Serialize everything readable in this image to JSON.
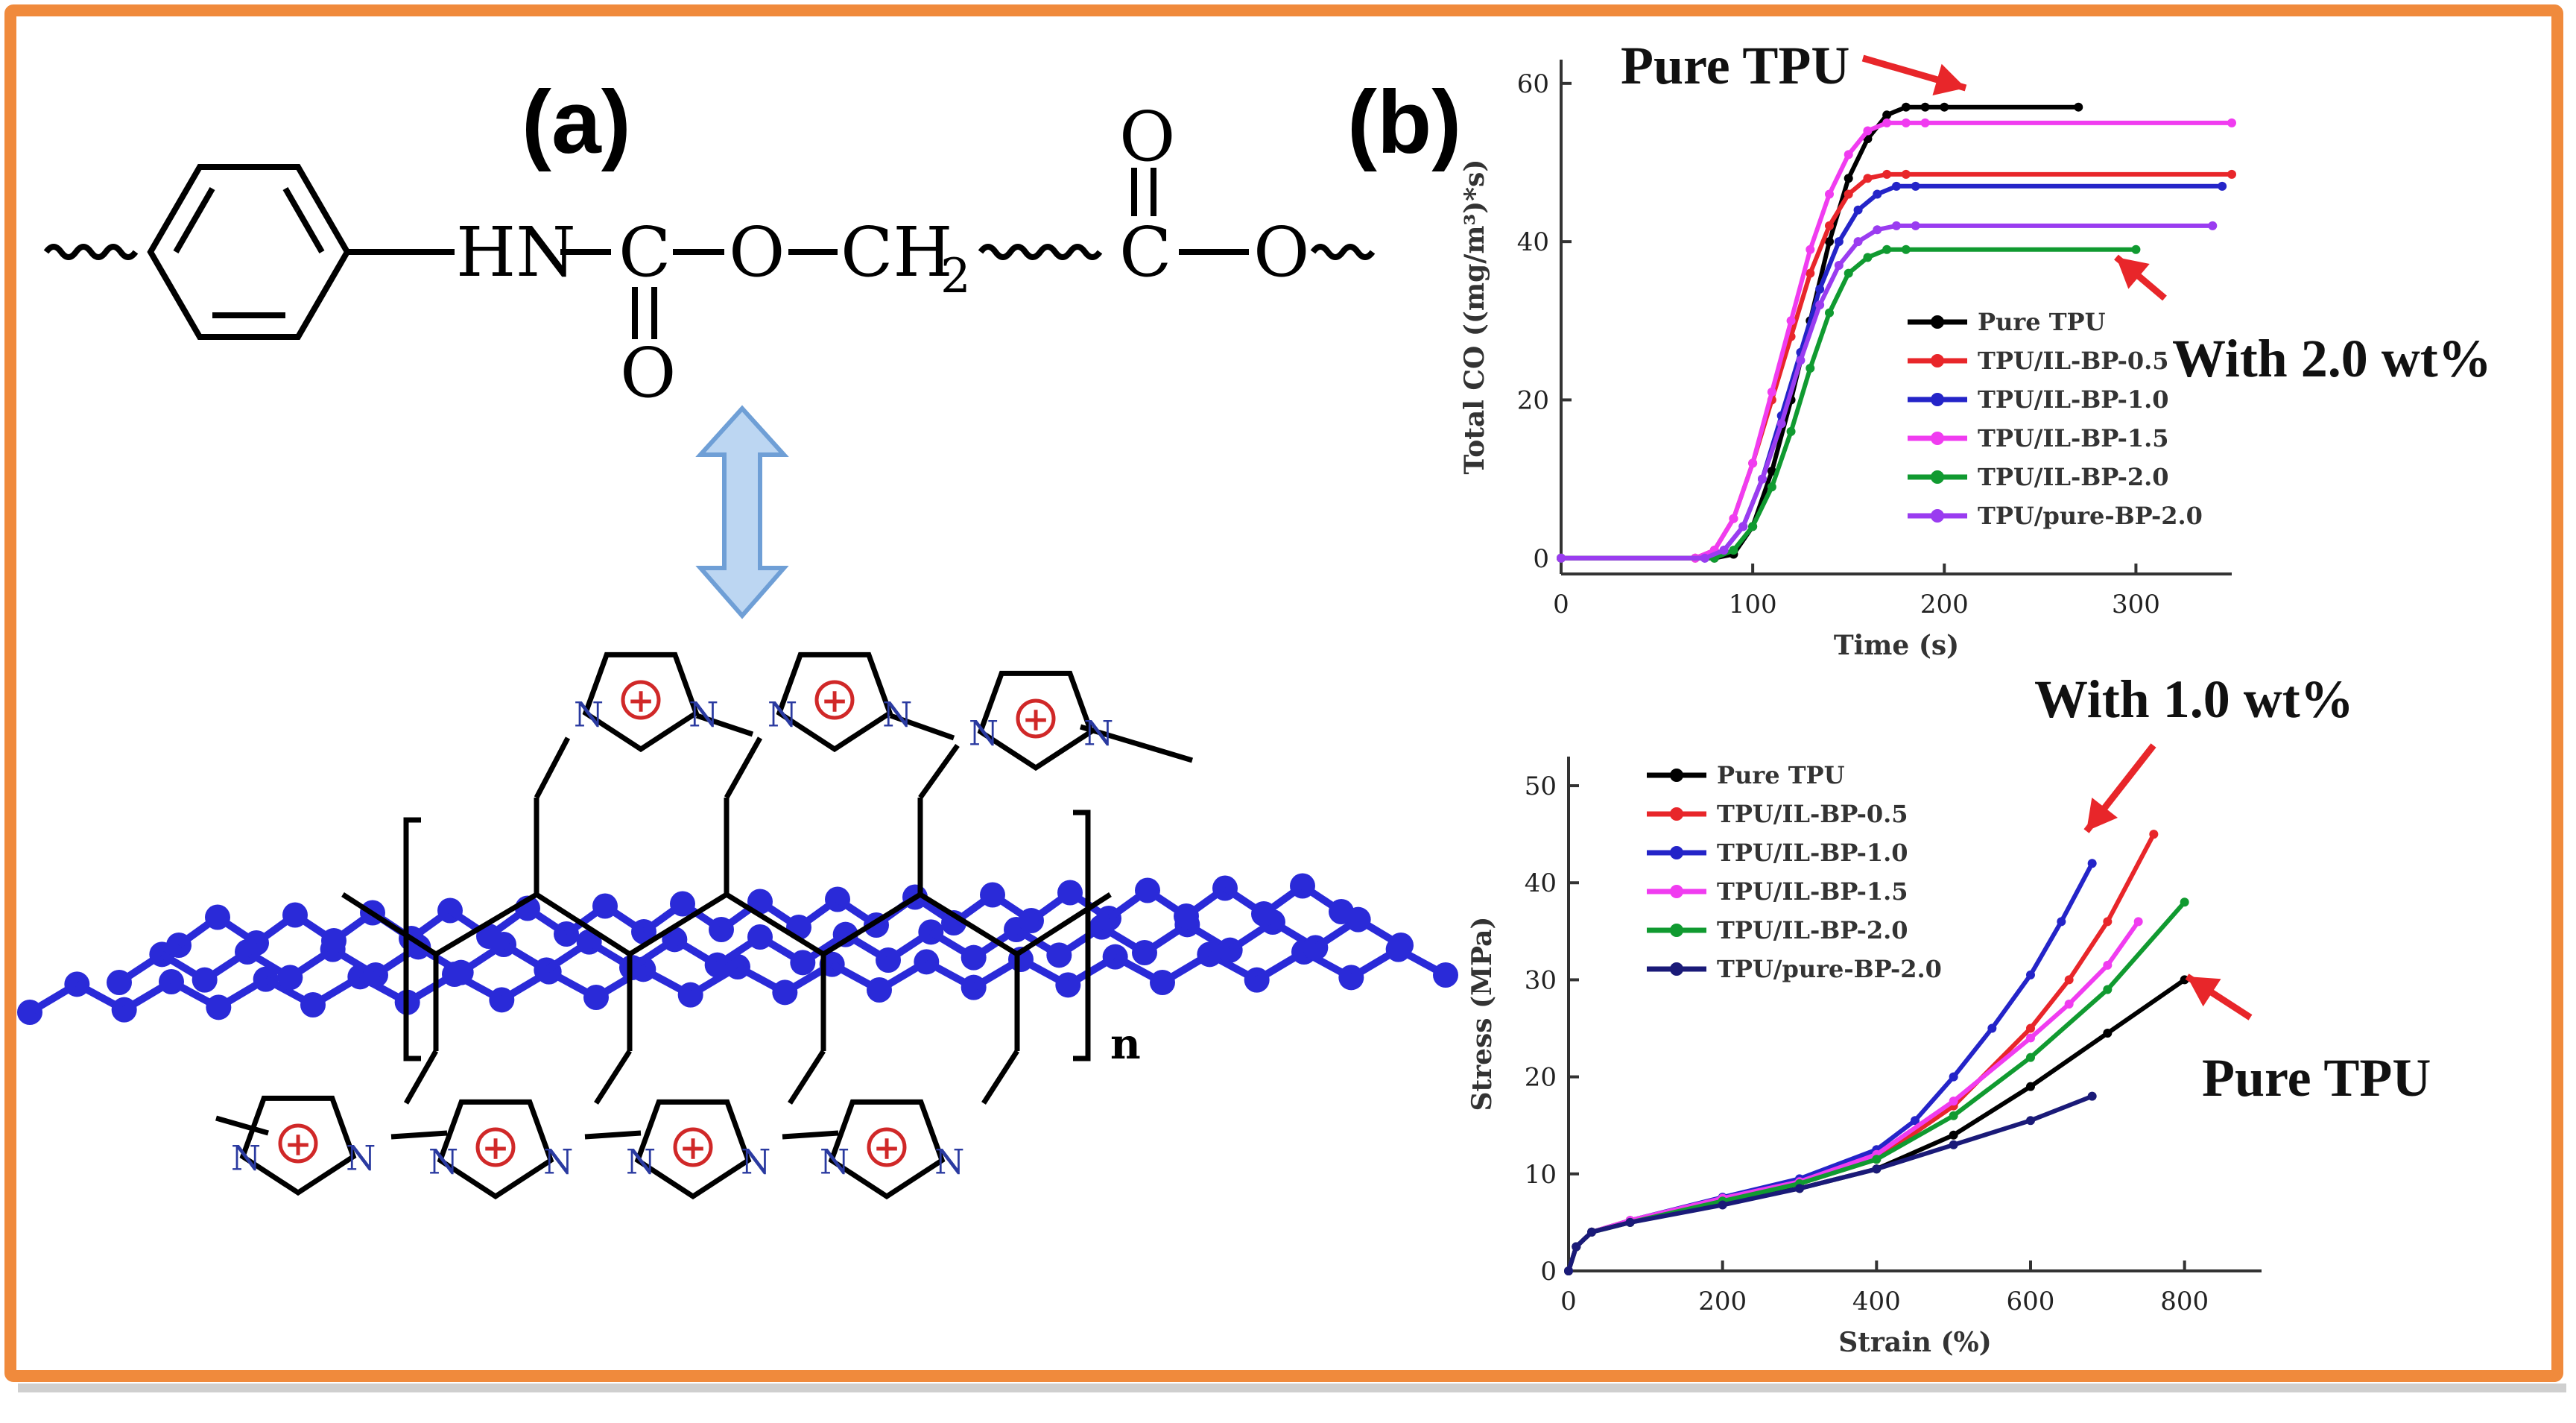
{
  "colors": {
    "border": "#f08a3c",
    "black": "#000000",
    "red": "#e8262a",
    "blue": "#2424c8",
    "magenta": "#f03cf0",
    "green": "#109a30",
    "purple": "#9a3cf0",
    "navy": "#1a1a78",
    "ring": "#d02828",
    "graphene": "#2a2ad8",
    "arrow_fill": "#bcd6f2",
    "arrow_stroke": "#6f9fd6"
  },
  "panel_a": {
    "label": "(a)",
    "structure_groups": [
      "HN",
      "C",
      "O",
      "CH",
      "2",
      "C",
      "O"
    ],
    "carbonyl_o_bottom": "O",
    "carbonyl_o_top": "O",
    "n_label": "N",
    "plus_symbol": "+",
    "subscript_n": "n"
  },
  "panel_b": {
    "label": "(b)"
  },
  "chart_data": [
    {
      "type": "line",
      "xlabel": "Time (s)",
      "ylabel": "Total CO ((mg/m³)*s)",
      "xlim": [
        0,
        350
      ],
      "ylim": [
        -2,
        63
      ],
      "xticks": [
        0,
        100,
        200,
        300
      ],
      "yticks": [
        0,
        20,
        40,
        60
      ],
      "grid": false,
      "legend_position": "bottom-right",
      "series": [
        {
          "name": "Pure TPU",
          "color": "#000000",
          "x": [
            0,
            80,
            90,
            100,
            110,
            120,
            130,
            140,
            150,
            160,
            170,
            180,
            190,
            200,
            270
          ],
          "y": [
            0,
            0,
            0.5,
            4,
            11,
            20,
            30,
            40,
            48,
            53,
            56,
            57,
            57,
            57,
            57
          ]
        },
        {
          "name": "TPU/IL-BP-0.5",
          "color": "#e8262a",
          "x": [
            0,
            70,
            80,
            90,
            100,
            110,
            120,
            130,
            140,
            150,
            160,
            170,
            180,
            350
          ],
          "y": [
            0,
            0,
            1,
            5,
            12,
            20,
            28,
            36,
            42,
            46,
            48,
            48.5,
            48.5,
            48.5
          ]
        },
        {
          "name": "TPU/IL-BP-1.0",
          "color": "#2424c8",
          "x": [
            0,
            75,
            85,
            95,
            105,
            115,
            125,
            135,
            145,
            155,
            165,
            175,
            185,
            345
          ],
          "y": [
            0,
            0,
            1,
            4,
            10,
            18,
            26,
            34,
            40,
            44,
            46,
            47,
            47,
            47
          ]
        },
        {
          "name": "TPU/IL-BP-1.5",
          "color": "#f03cf0",
          "x": [
            0,
            70,
            80,
            90,
            100,
            110,
            120,
            130,
            140,
            150,
            160,
            170,
            180,
            190,
            350
          ],
          "y": [
            0,
            0,
            1,
            5,
            12,
            21,
            30,
            39,
            46,
            51,
            54,
            55,
            55,
            55,
            55
          ]
        },
        {
          "name": "TPU/IL-BP-2.0",
          "color": "#109a30",
          "x": [
            0,
            80,
            90,
            100,
            110,
            120,
            130,
            140,
            150,
            160,
            170,
            180,
            300
          ],
          "y": [
            0,
            0,
            1,
            4,
            9,
            16,
            24,
            31,
            36,
            38,
            39,
            39,
            39
          ]
        },
        {
          "name": "TPU/pure-BP-2.0",
          "color": "#9a3cf0",
          "x": [
            0,
            75,
            85,
            95,
            105,
            115,
            125,
            135,
            145,
            155,
            165,
            175,
            185,
            340
          ],
          "y": [
            0,
            0,
            1,
            4,
            10,
            17,
            25,
            32,
            37,
            40,
            41.5,
            42,
            42,
            42
          ]
        }
      ],
      "annotations": [
        {
          "text": "Pure TPU"
        },
        {
          "text": "With 2.0 wt%"
        }
      ]
    },
    {
      "type": "line",
      "xlabel": "Strain (%)",
      "ylabel": "Stress (MPa)",
      "xlim": [
        0,
        900
      ],
      "ylim": [
        0,
        53
      ],
      "xticks": [
        0,
        200,
        400,
        600,
        800
      ],
      "yticks": [
        0,
        10,
        20,
        30,
        40,
        50
      ],
      "grid": false,
      "legend_position": "top-left",
      "series": [
        {
          "name": "Pure TPU",
          "color": "#000000",
          "x": [
            0,
            10,
            30,
            80,
            200,
            300,
            400,
            500,
            600,
            700,
            800
          ],
          "y": [
            0,
            2.5,
            4,
            5,
            7,
            8.5,
            10.5,
            14,
            19,
            24.5,
            30
          ]
        },
        {
          "name": "TPU/IL-BP-0.5",
          "color": "#e8262a",
          "x": [
            0,
            10,
            30,
            80,
            200,
            300,
            400,
            500,
            600,
            650,
            700,
            760
          ],
          "y": [
            0,
            2.5,
            4,
            5.2,
            7.5,
            9,
            11.5,
            17,
            25,
            30,
            36,
            45
          ]
        },
        {
          "name": "TPU/IL-BP-1.0",
          "color": "#2424c8",
          "x": [
            0,
            10,
            30,
            80,
            200,
            300,
            400,
            450,
            500,
            550,
            600,
            640,
            680
          ],
          "y": [
            0,
            2.5,
            4,
            5.2,
            7.6,
            9.5,
            12.5,
            15.5,
            20,
            25,
            30.5,
            36,
            42
          ]
        },
        {
          "name": "TPU/IL-BP-1.5",
          "color": "#f03cf0",
          "x": [
            0,
            10,
            30,
            80,
            200,
            300,
            400,
            500,
            600,
            650,
            700,
            740
          ],
          "y": [
            0,
            2.5,
            4,
            5.2,
            7.5,
            9.2,
            12,
            17.5,
            24,
            27.5,
            31.5,
            36
          ]
        },
        {
          "name": "TPU/IL-BP-2.0",
          "color": "#109a30",
          "x": [
            0,
            10,
            30,
            80,
            200,
            300,
            400,
            500,
            600,
            700,
            800
          ],
          "y": [
            0,
            2.5,
            4,
            5,
            7.2,
            9,
            11.5,
            16,
            22,
            29,
            38
          ]
        },
        {
          "name": "TPU/pure-BP-2.0",
          "color": "#1a1a78",
          "x": [
            0,
            10,
            30,
            80,
            200,
            300,
            400,
            500,
            600,
            680
          ],
          "y": [
            0,
            2.5,
            4,
            5,
            6.8,
            8.5,
            10.5,
            13,
            15.5,
            18
          ]
        }
      ],
      "annotations": [
        {
          "text": "With 1.0 wt%"
        },
        {
          "text": "Pure TPU"
        }
      ]
    }
  ]
}
